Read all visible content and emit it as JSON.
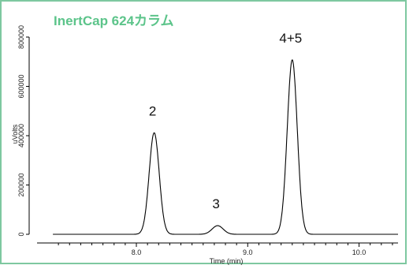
{
  "chart_data": {
    "type": "line",
    "title": "InertCap 624カラム",
    "title_color": "#5cc48a",
    "xlabel": "Time (min)",
    "ylabel": "uVolts",
    "xlim": [
      7.2,
      10.35
    ],
    "ylim": [
      -30000,
      880000
    ],
    "x_ticks": [
      "8.0",
      "9.0",
      "10.0"
    ],
    "y_ticks": [
      "0",
      "200000",
      "400000",
      "600000",
      "800000"
    ],
    "x_tick_values": [
      8.0,
      9.0,
      10.0
    ],
    "y_tick_values": [
      0,
      200000,
      400000,
      600000,
      800000
    ],
    "peaks": [
      {
        "label": "2",
        "rt": 8.16,
        "height": 412000,
        "width": 0.045
      },
      {
        "label": "3",
        "rt": 8.73,
        "height": 35000,
        "width": 0.05
      },
      {
        "label": "4+5",
        "rt": 9.4,
        "height": 708000,
        "width": 0.045
      }
    ],
    "line_color": "#000000"
  }
}
